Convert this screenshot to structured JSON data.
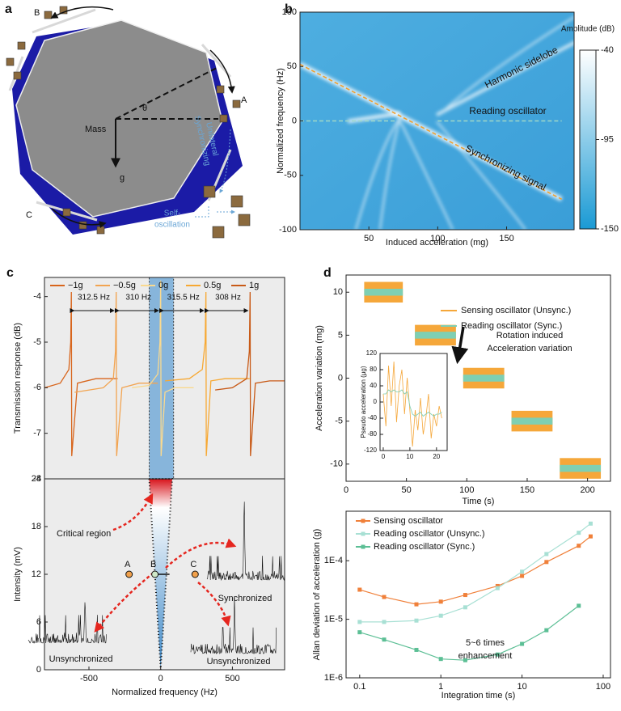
{
  "diagram": {
    "panel_label": "a",
    "label_A": "A",
    "label_B": "B",
    "label_C": "C",
    "mass": "Mass",
    "theta": "θ",
    "g": "g",
    "sync_1": "Unilateral",
    "sync_2": "Synchronizing",
    "self_1": "Self-",
    "self_2": "oscillation"
  },
  "chart_data": [
    {
      "type": "heatmap",
      "panel_label": "b",
      "xlabel": "Induced acceleration (mg)",
      "ylabel": "Normalized frequency (Hz)",
      "xlim": [
        0,
        199
      ],
      "ylim": [
        -100,
        100
      ],
      "xticks": [
        50,
        100,
        150
      ],
      "yticks": [
        -100,
        -50,
        0,
        50,
        100
      ],
      "colorbar_label": "Amplitude (dB)",
      "clim": [
        -150,
        -40
      ],
      "cticks": [
        -40,
        -95,
        -150
      ],
      "annotations": [
        "Harmonic sidelobe",
        "Reading oscillator",
        "Synchronizing signal"
      ],
      "lines": [
        {
          "color": "#f0a030",
          "x": [
            0,
            190
          ],
          "values": [
            52,
            -72
          ]
        },
        {
          "color": "#9fd8c8",
          "x": [
            0,
            70
          ],
          "values": [
            0,
            0
          ]
        },
        {
          "color": "#9fd8c8",
          "x": [
            100,
            190
          ],
          "values": [
            0,
            0
          ]
        }
      ]
    },
    {
      "type": "line",
      "panel_label": "c",
      "ylabel": "Transmission response (dB)",
      "xlim": [
        -810,
        864
      ],
      "ylim": [
        -8,
        -3.58
      ],
      "yticks": [
        -8,
        -7,
        -6,
        -5,
        -4
      ],
      "highlight": [
        -80,
        90
      ],
      "series": [
        {
          "name": "−1g",
          "color": "#d8651c",
          "x": [
            -810,
            -700,
            -640,
            -627,
            -622.5,
            -620,
            -580,
            -450,
            -300
          ],
          "values": [
            -6.0,
            -5.9,
            -5.6,
            -5.0,
            -3.9,
            -7.5,
            -5.9,
            -5.8,
            -5.8
          ]
        },
        {
          "name": "−0.5g",
          "color": "#f2a451",
          "x": [
            -600,
            -400,
            -330,
            -315,
            -310,
            -307,
            -270,
            -150,
            -20
          ],
          "values": [
            -6.1,
            -6.0,
            -5.8,
            -5.2,
            -3.9,
            -7.5,
            -6.0,
            -5.9,
            -5.9
          ]
        },
        {
          "name": "0g",
          "color": "#f9d98f",
          "x": [
            -200,
            -80,
            -20,
            -5,
            0,
            3,
            30,
            100,
            230
          ],
          "values": [
            -6.0,
            -5.95,
            -5.7,
            -5.0,
            -3.65,
            -7.5,
            -6.1,
            -6.0,
            -6.0
          ]
        },
        {
          "name": "0.5g",
          "color": "#f7a832",
          "x": [
            30,
            200,
            290,
            310,
            315.5,
            318,
            350,
            450,
            620
          ],
          "values": [
            -5.85,
            -5.8,
            -5.6,
            -5.0,
            -3.9,
            -7.5,
            -5.85,
            -5.8,
            -5.8
          ]
        },
        {
          "name": "1g",
          "color": "#c85a17",
          "x": [
            380,
            500,
            600,
            618,
            623.5,
            626,
            660,
            760,
            864
          ],
          "values": [
            -6.05,
            -6.0,
            -5.8,
            -5.2,
            -3.9,
            -7.5,
            -5.9,
            -5.85,
            -5.85
          ]
        }
      ],
      "spacings": [
        {
          "label": "312.5 Hz",
          "from": -622.5,
          "to": -310
        },
        {
          "label": "310 Hz",
          "from": -310,
          "to": 0
        },
        {
          "label": "315.5 Hz",
          "from": 0,
          "to": 315.5
        },
        {
          "label": "308 Hz",
          "from": 315.5,
          "to": 623.5
        }
      ]
    },
    {
      "type": "scatter",
      "xlabel": "Normalized frequency (Hz)",
      "ylabel": "Intensity (mV)",
      "xlim": [
        -810,
        864
      ],
      "ylim": [
        0,
        24
      ],
      "xticks": [
        -500,
        0,
        500
      ],
      "yticks": [
        0,
        6,
        12,
        18,
        24
      ],
      "cone": [
        -80,
        80
      ],
      "critical_label": "Critical region",
      "labels": [
        "A",
        "B",
        "C"
      ],
      "x": [
        -220,
        -40,
        240
      ],
      "values": [
        12,
        12,
        12
      ],
      "colors": [
        "#f0a04b",
        "#cfe8c8",
        "#f0a04b"
      ],
      "spectra_labels": [
        "Unsynchronized",
        "Synchronized",
        "Unsynchronized"
      ]
    },
    {
      "type": "band",
      "panel_label": "d",
      "xlabel": "Time (s)",
      "ylabel": "Acceleration variation (mg)",
      "xlim": [
        0,
        219
      ],
      "ylim": [
        -12,
        12
      ],
      "xticks": [
        0,
        50,
        100,
        150,
        200
      ],
      "yticks": [
        -10,
        -5,
        0,
        5,
        10
      ],
      "annotation_1": "Rotation induced",
      "annotation_2": "Acceleration variation",
      "series": [
        {
          "name": "Sensing oscillator (Unsync.)",
          "color": "#f5a73a",
          "x_start": [
            15,
            57,
            97,
            137,
            177
          ],
          "x_end": [
            47,
            91,
            131,
            171,
            211
          ],
          "values": [
            10,
            5,
            0,
            -5,
            -10.5
          ],
          "error": [
            1.2,
            1.2,
            1.2,
            1.2,
            1.2
          ]
        },
        {
          "name": "Reading oscillator (Sync.)",
          "color": "#7ecfb3",
          "x_start": [
            15,
            57,
            97,
            137,
            177
          ],
          "x_end": [
            47,
            91,
            131,
            171,
            211
          ],
          "values": [
            10,
            5,
            0,
            -5,
            -10.5
          ],
          "error": [
            0.4,
            0.4,
            0.4,
            0.4,
            0.4
          ]
        }
      ]
    },
    {
      "type": "line",
      "ylabel": "Pseudo acceleration (μg)",
      "xlim": [
        -1.2,
        24
      ],
      "ylim": [
        -120,
        120
      ],
      "xticks": [
        0,
        10,
        20
      ],
      "yticks": [
        -120,
        -80,
        -40,
        0,
        40,
        80,
        120
      ],
      "series": [
        {
          "color": "#f5a73a",
          "x": [
            0,
            1,
            2,
            3,
            4,
            5,
            6,
            7,
            8,
            9,
            10,
            11,
            12,
            13,
            14,
            15,
            16,
            17,
            18,
            19,
            20,
            21,
            22
          ],
          "values": [
            20,
            -60,
            90,
            -10,
            100,
            -50,
            40,
            80,
            -30,
            60,
            -20,
            -110,
            -20,
            -70,
            10,
            -80,
            -40,
            20,
            -90,
            -30,
            -60,
            -10,
            -40
          ]
        },
        {
          "color": "#7ecfb3",
          "x": [
            0,
            1,
            2,
            3,
            4,
            5,
            6,
            7,
            8,
            9,
            10,
            11,
            12,
            13,
            14,
            15,
            16,
            17,
            18,
            19,
            20,
            21,
            22
          ],
          "values": [
            20,
            20,
            30,
            25,
            30,
            25,
            25,
            30,
            20,
            25,
            -10,
            -30,
            -35,
            -30,
            -25,
            -35,
            -30,
            -25,
            -30,
            -35,
            -30,
            -30,
            -25
          ]
        }
      ]
    },
    {
      "type": "line",
      "log_x": true,
      "log_y": true,
      "markers": true,
      "xlabel": "Integration time (s)",
      "ylabel": "Allan deviation of acceleration (g)",
      "xlim": [
        0.068,
        123
      ],
      "ylim": [
        1e-06,
        0.0007
      ],
      "xticks": [
        0.1,
        1,
        10,
        100
      ],
      "yticks": [
        {
          "value": 1e-06,
          "label": "1E-6"
        },
        {
          "value": 1e-05,
          "label": "1E-5"
        },
        {
          "value": 0.0001,
          "label": "1E-4"
        }
      ],
      "annotation_1": "5~6 times",
      "annotation_2": "enhancement",
      "series": [
        {
          "name": "Sensing oscillator",
          "color": "#f0803a",
          "x": [
            0.1,
            0.2,
            0.5,
            1,
            2,
            5,
            10,
            20,
            50,
            70
          ],
          "values": [
            3.2e-05,
            2.4e-05,
            1.8e-05,
            2e-05,
            2.6e-05,
            3.7e-05,
            5.5e-05,
            9.5e-05,
            0.00018,
            0.00026
          ]
        },
        {
          "name": "Reading oscillator (Unsync.)",
          "color": "#a8e0d4",
          "x": [
            0.1,
            0.2,
            0.5,
            1,
            2,
            5,
            10,
            20,
            50,
            70
          ],
          "values": [
            9e-06,
            9e-06,
            9.5e-06,
            1.15e-05,
            1.6e-05,
            3.4e-05,
            6.5e-05,
            0.00013,
            0.0003,
            0.00043
          ]
        },
        {
          "name": "Reading oscillator (Sync.)",
          "color": "#5cbf95",
          "x": [
            0.1,
            0.2,
            0.5,
            1,
            2,
            5,
            10,
            20,
            50
          ],
          "values": [
            6e-06,
            4.5e-06,
            3e-06,
            2.1e-06,
            2e-06,
            2.5e-06,
            3.8e-06,
            6.5e-06,
            1.7e-05
          ]
        }
      ]
    }
  ]
}
